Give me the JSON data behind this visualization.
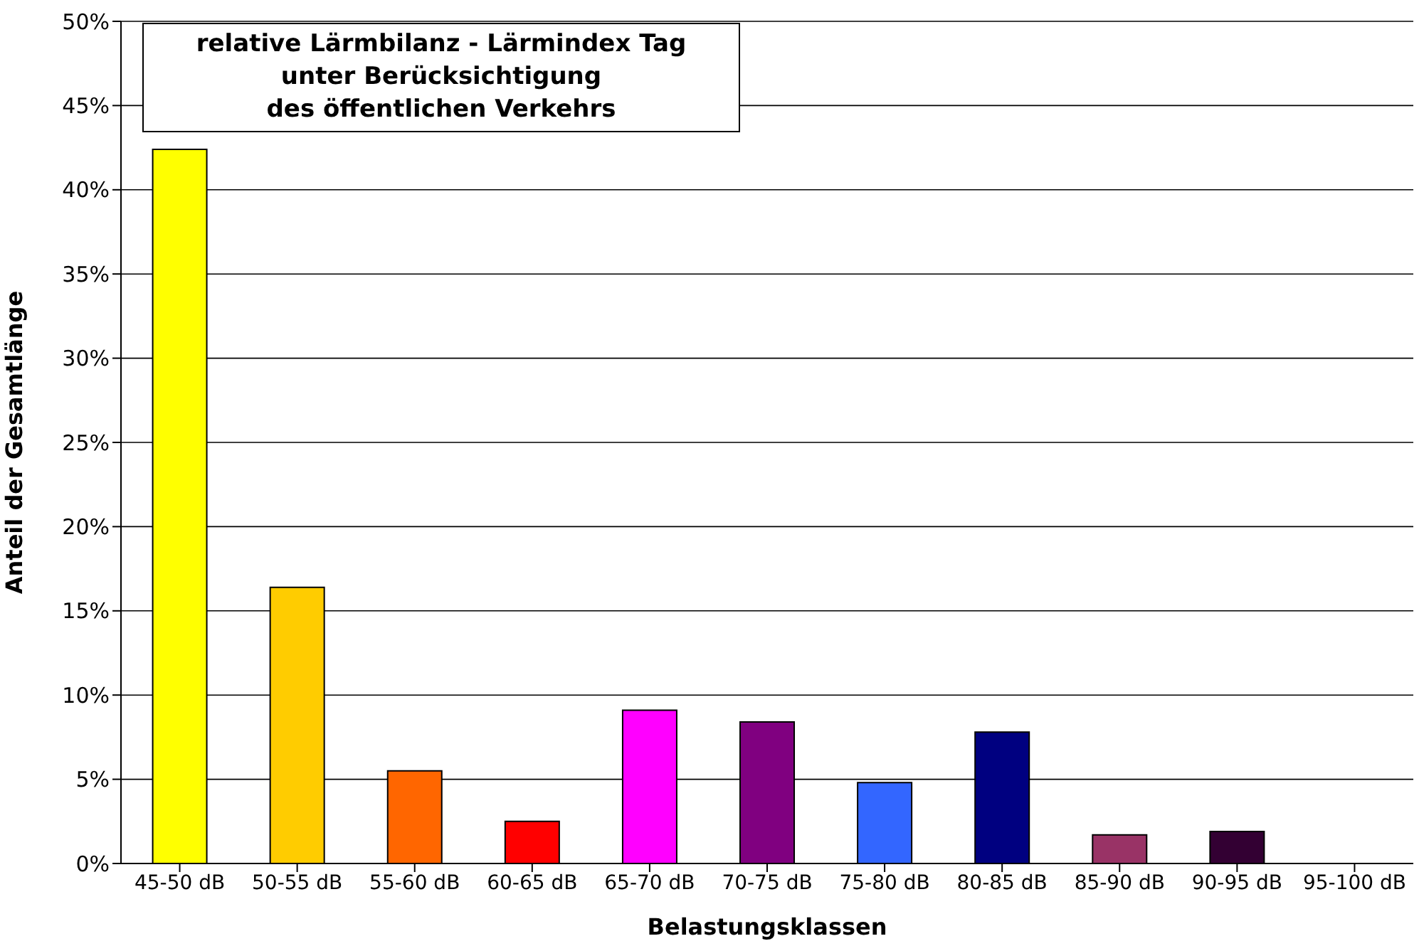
{
  "chart_data": {
    "type": "bar",
    "title": "relative Lärmbilanz - Lärmindex Tag\nunter Berücksichtigung\ndes öffentlichen Verkehrs",
    "xlabel": "Belastungsklassen",
    "ylabel": "Anteil der Gesamtlänge",
    "categories": [
      "45-50 dB",
      "50-55 dB",
      "55-60 dB",
      "60-65 dB",
      "65-70 dB",
      "70-75 dB",
      "75-80 dB",
      "80-85 dB",
      "85-90 dB",
      "90-95 dB",
      "95-100 dB"
    ],
    "values": [
      42.4,
      16.4,
      5.5,
      2.5,
      9.1,
      8.4,
      4.8,
      7.8,
      1.7,
      1.9,
      0
    ],
    "colors": [
      "#ffff00",
      "#ffcc00",
      "#ff6600",
      "#ff0000",
      "#ff00ff",
      "#800080",
      "#3366ff",
      "#000080",
      "#993366",
      "#330033",
      "#808080"
    ],
    "ylim": [
      0,
      50
    ],
    "yticks": [
      {
        "value": 0,
        "label": "0%"
      },
      {
        "value": 5,
        "label": "5%"
      },
      {
        "value": 10,
        "label": "10%"
      },
      {
        "value": 15,
        "label": "15%"
      },
      {
        "value": 20,
        "label": "20%"
      },
      {
        "value": 25,
        "label": "25%"
      },
      {
        "value": 30,
        "label": "30%"
      },
      {
        "value": 35,
        "label": "35%"
      },
      {
        "value": 40,
        "label": "40%"
      },
      {
        "value": 45,
        "label": "45%"
      },
      {
        "value": 50,
        "label": "50%"
      }
    ],
    "grid": "y",
    "legend": false
  }
}
